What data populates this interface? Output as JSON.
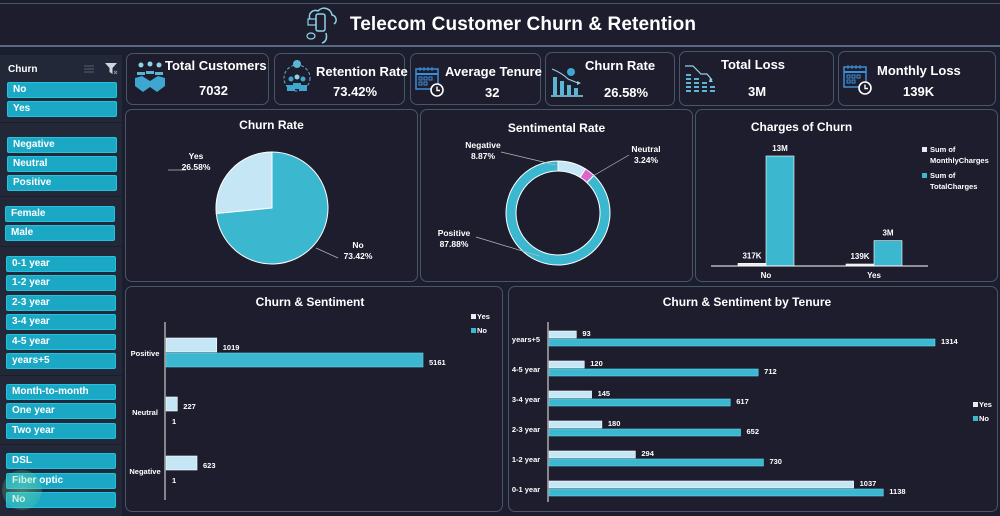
{
  "header": {
    "title": "Telecom Customer Churn & Retention",
    "icon": "phone-cloud-icon"
  },
  "sidebar": {
    "slicer_title": "Churn",
    "groups": [
      {
        "name": "churn",
        "items": [
          "No",
          "Yes"
        ]
      },
      {
        "name": "sentiment",
        "items": [
          "Negative",
          "Neutral",
          "Positive"
        ]
      },
      {
        "name": "gender",
        "items": [
          "Female",
          "Male"
        ]
      },
      {
        "name": "tenure",
        "items": [
          "0-1 year",
          "1-2 year",
          "2-3 year",
          "3-4 year",
          "4-5 year",
          "years+5"
        ]
      },
      {
        "name": "contract",
        "items": [
          "Month-to-month",
          "One year",
          "Two year"
        ]
      },
      {
        "name": "internet",
        "items": [
          "DSL",
          "Fiber optic",
          "No"
        ]
      }
    ]
  },
  "kpis": [
    {
      "title": "Total Customers",
      "value": "7032",
      "icon": "handshake-icon"
    },
    {
      "title": "Retention Rate",
      "value": "73.42%",
      "icon": "retention-cycle-icon"
    },
    {
      "title": "Average Tenure",
      "value": "32",
      "icon": "calendar-clock-icon"
    },
    {
      "title": "Churn Rate",
      "value": "26.58%",
      "icon": "declining-bars-icon"
    },
    {
      "title": "Total Loss",
      "value": "3M",
      "icon": "loss-chart-icon"
    },
    {
      "title": "Monthly Loss",
      "value": "139K",
      "icon": "calendar-clock-icon"
    }
  ],
  "colors": {
    "primary": "#3bb8d0",
    "light": "#c5e6f5",
    "neutral": "#d966c8",
    "background": "#1e1d2e",
    "slicer": "#1ba8c4"
  },
  "chart_data": [
    {
      "type": "pie",
      "title": "Churn Rate",
      "categories": [
        "Yes",
        "No"
      ],
      "values": [
        26.58,
        73.42
      ],
      "labels": [
        "26.58%",
        "73.42%"
      ]
    },
    {
      "type": "pie",
      "subtype": "donut",
      "title": "Sentimental Rate",
      "categories": [
        "Negative",
        "Neutral",
        "Positive"
      ],
      "values": [
        8.87,
        3.24,
        87.88
      ],
      "labels": [
        "8.87%",
        "3.24%",
        "87.88%"
      ]
    },
    {
      "type": "bar",
      "title": "Charges of Churn",
      "categories": [
        "No",
        "Yes"
      ],
      "series": [
        {
          "name": "Sum of MonthlyCharges",
          "values": [
            317000,
            139000
          ],
          "labels": [
            "317K",
            "139K"
          ]
        },
        {
          "name": "Sum of TotalCharges",
          "values": [
            13000000,
            3000000
          ],
          "labels": [
            "13M",
            "3M"
          ]
        }
      ],
      "legend": "right"
    },
    {
      "type": "bar",
      "orientation": "horizontal",
      "title": "Churn & Sentiment",
      "categories": [
        "Positive",
        "Neutral",
        "Negative"
      ],
      "series": [
        {
          "name": "Yes",
          "values": [
            1019,
            227,
            623
          ]
        },
        {
          "name": "No",
          "values": [
            5161,
            1,
            1
          ]
        }
      ],
      "legend": "top-right"
    },
    {
      "type": "bar",
      "orientation": "horizontal",
      "title": "Churn & Sentiment by Tenure",
      "categories": [
        "years+5",
        "4-5 year",
        "3-4 year",
        "2-3 year",
        "1-2 year",
        "0-1 year"
      ],
      "series": [
        {
          "name": "Yes",
          "values": [
            93,
            120,
            145,
            180,
            294,
            1037
          ]
        },
        {
          "name": "No",
          "values": [
            1314,
            712,
            617,
            652,
            730,
            1138
          ]
        }
      ],
      "legend": "right"
    }
  ]
}
